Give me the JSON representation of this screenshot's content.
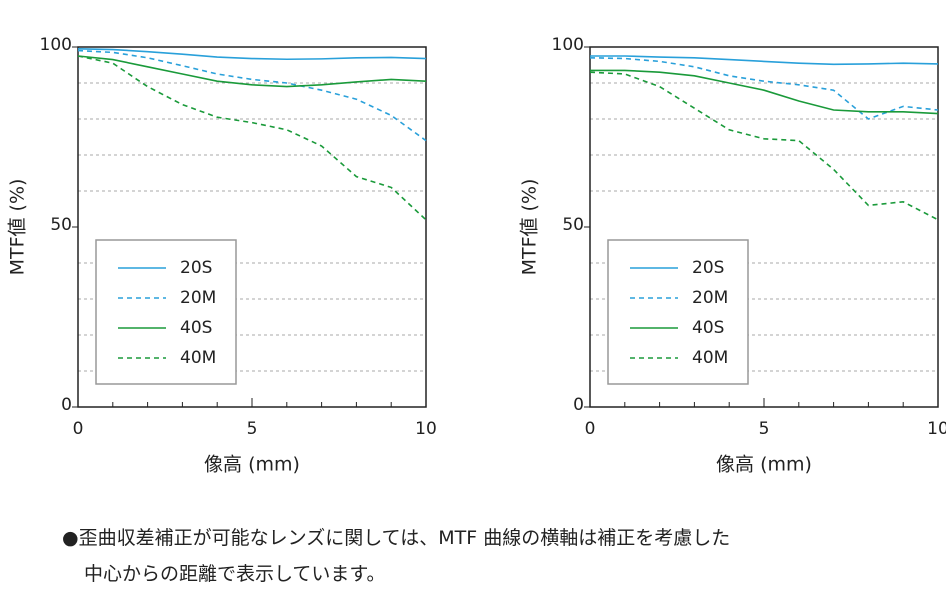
{
  "chart_data": [
    {
      "type": "line",
      "xlabel": "像高 (mm)",
      "ylabel": "MTF値 (%)",
      "x": [
        0,
        1,
        2,
        3,
        4,
        5,
        6,
        7,
        8,
        9,
        10
      ],
      "xlim": [
        0,
        10
      ],
      "xticks": [
        0,
        5,
        10
      ],
      "ylim": [
        0,
        100
      ],
      "yticks": [
        0,
        50,
        100
      ],
      "ygrid": [
        10,
        20,
        30,
        40,
        60,
        70,
        80,
        90
      ],
      "series": [
        {
          "name": "20S",
          "color": "#29a0da",
          "dashed": false,
          "values": [
            99.5,
            99.3,
            98.7,
            98,
            97.2,
            96.8,
            96.6,
            96.7,
            97,
            97.1,
            96.8
          ]
        },
        {
          "name": "20M",
          "color": "#29a0da",
          "dashed": true,
          "values": [
            99,
            98.5,
            97,
            94.8,
            92.5,
            91,
            90,
            88,
            85.5,
            81,
            74
          ]
        },
        {
          "name": "40S",
          "color": "#1a9a3a",
          "dashed": false,
          "values": [
            97.5,
            96.5,
            94.5,
            92.5,
            90.5,
            89.5,
            89,
            89.5,
            90.3,
            91,
            90.5
          ]
        },
        {
          "name": "40M",
          "color": "#1a9a3a",
          "dashed": true,
          "values": [
            97.5,
            95.5,
            89,
            84,
            80.5,
            79,
            77,
            72.5,
            64,
            61,
            52
          ]
        }
      ]
    },
    {
      "type": "line",
      "xlabel": "像高 (mm)",
      "ylabel": "MTF値 (%)",
      "x": [
        0,
        1,
        2,
        3,
        4,
        5,
        6,
        7,
        8,
        9,
        10
      ],
      "xlim": [
        0,
        10
      ],
      "xticks": [
        0,
        5,
        10
      ],
      "ylim": [
        0,
        100
      ],
      "yticks": [
        0,
        50,
        100
      ],
      "ygrid": [
        10,
        20,
        30,
        40,
        60,
        70,
        80,
        90
      ],
      "series": [
        {
          "name": "20S",
          "color": "#29a0da",
          "dashed": false,
          "values": [
            97.5,
            97.5,
            97.2,
            97,
            96.5,
            96,
            95.5,
            95.2,
            95.3,
            95.5,
            95.3
          ]
        },
        {
          "name": "20M",
          "color": "#29a0da",
          "dashed": true,
          "values": [
            97,
            96.8,
            96,
            94.5,
            92,
            90.5,
            89.5,
            88,
            80,
            83.5,
            82.5
          ]
        },
        {
          "name": "40S",
          "color": "#1a9a3a",
          "dashed": false,
          "values": [
            93.5,
            93.5,
            93,
            92,
            90,
            88,
            85,
            82.5,
            82,
            82,
            81.5
          ]
        },
        {
          "name": "40M",
          "color": "#1a9a3a",
          "dashed": true,
          "values": [
            93,
            92.5,
            89,
            83,
            77,
            74.5,
            74,
            66,
            56,
            57,
            52
          ]
        }
      ]
    }
  ],
  "note": {
    "lines": [
      "●歪曲収差補正が可能なレンズに関しては、MTF 曲線の横軸は補正を考慮した",
      "中心からの距離で表示しています。"
    ]
  }
}
